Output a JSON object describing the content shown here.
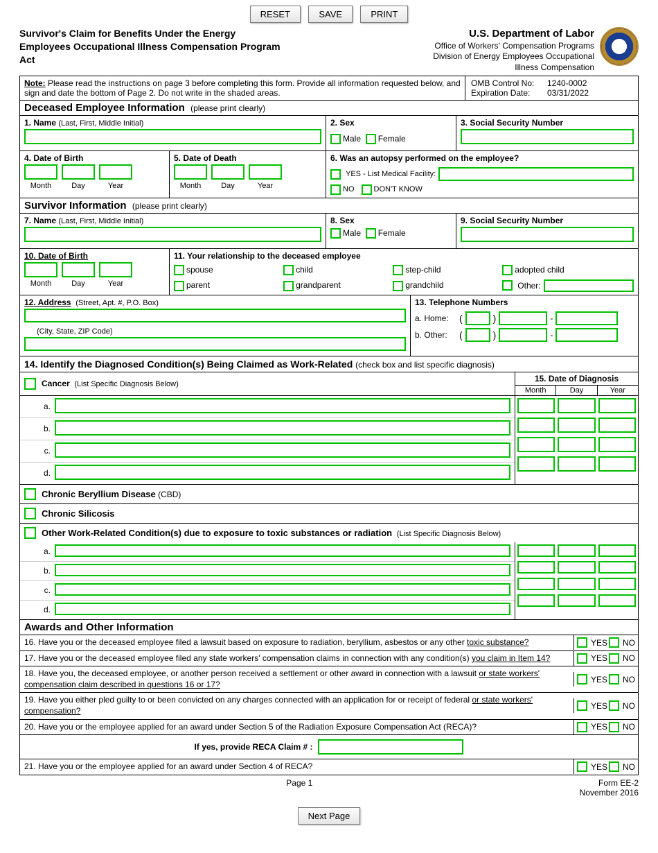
{
  "colors": {
    "green": "#00c000",
    "border": "#000000",
    "btn_border": "#7a7a7a"
  },
  "buttons": {
    "reset": "RESET",
    "save": "SAVE",
    "print": "PRINT",
    "next": "Next Page"
  },
  "header": {
    "title_l1": "Survivor's Claim for Benefits Under the Energy",
    "title_l2": "Employees Occupational Illness Compensation Program",
    "title_l3": "Act",
    "dept": "U.S. Department of Labor",
    "office_l1": "Office of Workers' Compensation Programs",
    "office_l2": "Division of Energy Employees Occupational",
    "office_l3": "Illness Compensation"
  },
  "note": {
    "label": "Note:",
    "text": " Please read the instructions on page 3 before completing this form.  Provide all information requested below, and sign and date the bottom of Page 2.  Do not write in the shaded areas."
  },
  "omb": {
    "control_label": "OMB Control No:",
    "control": "1240-0002",
    "exp_label": "Expiration Date:",
    "exp": "03/31/2022"
  },
  "sections": {
    "deceased": "Deceased Employee Information",
    "survivor": "Survivor Information",
    "awards": "Awards and Other Information",
    "hint": "(please print clearly)"
  },
  "fields": {
    "q1": "1.  Name",
    "q1_hint": "(Last, First, Middle Initial)",
    "q2": "2.  Sex",
    "male": "Male",
    "female": "Female",
    "q3": "3.  Social Security Number",
    "q4": "4.  Date of Birth",
    "q5": "5.  Date of Death",
    "month": "Month",
    "day": "Day",
    "year": "Year",
    "q6": "6.  Was an autopsy performed on the employee?",
    "yes_fac": "YES - List Medical Facility:",
    "no": "NO",
    "dontknow": "DON'T KNOW",
    "q7": "7.  Name",
    "q8": "8.  Sex",
    "q9": "9.  Social Security Number",
    "q10": "10.  Date of Birth",
    "q11": "11.  Your relationship to the deceased employee",
    "rel": {
      "spouse": "spouse",
      "child": "child",
      "stepchild": "step-child",
      "adopted": "adopted child",
      "parent": "parent",
      "grandparent": "grandparent",
      "grandchild": "grandchild",
      "other": "Other:"
    },
    "q12": "12.  Address",
    "q12_hint1": "(Street, Apt. #, P.O. Box)",
    "q12_hint2": "(City, State, ZIP Code)",
    "q13": "13.  Telephone Numbers",
    "home": "a.  Home:",
    "other_tel": "b.  Other:",
    "q14": "14.  Identify the Diagnosed Condition(s) Being Claimed as Work-Related",
    "q14_hint": "(check box and list specific diagnosis)",
    "cancer": "Cancer",
    "cancer_hint": "(List Specific Diagnosis Below)",
    "q15": "15.  Date of Diagnosis",
    "cbd": "Chronic Beryllium Disease",
    "cbd_abbr": "(CBD)",
    "silicosis": "Chronic Silicosis",
    "other_cond": "Other Work-Related Condition(s) due to exposure to toxic substances or radiation",
    "other_cond_hint": "(List Specific Diagnosis Below)",
    "letters": [
      "a.",
      "b.",
      "c.",
      "d."
    ]
  },
  "awards": {
    "q16": "16. Have you or the deceased employee filed a lawsuit based on exposure to radiation, beryllium, asbestos or any other ",
    "q16_u": "toxic substance?",
    "q17": "17. Have you or the deceased employee filed any state workers' compensation claims in connection with any condition(s) ",
    "q17_u": "you claim in Item 14?",
    "q18": "18. Have you, the deceased employee, or another person received a settlement or other award in connection with a lawsuit ",
    "q18_u": "or state workers' compensation claim described in questions 16 or 17?",
    "q19": "19. Have you either pled guilty to or been convicted on any charges connected with an application for or receipt of federal ",
    "q19_u": "or state workers' compensation?",
    "q20": "20. Have you or the employee applied for an award under Section 5 of the Radiation Exposure Compensation Act (RECA)?",
    "reca": "If yes, provide RECA Claim # :",
    "q21": "21.  Have you or the employee applied for an award under Section 4 of RECA?",
    "yes": "YES",
    "no": "NO"
  },
  "footer": {
    "page": "Page 1",
    "form": "Form EE-2",
    "date": "November 2016"
  }
}
